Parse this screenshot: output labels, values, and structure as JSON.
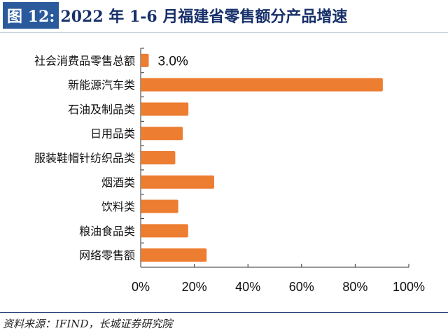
{
  "header": {
    "figure_label": "图 12:",
    "title": "2022 年 1-6 月福建省零售额分产品增速"
  },
  "source": "资料来源：IFIND，长城证券研究院",
  "colors": {
    "bar": "#ed7d31",
    "title_box": "#2a5a9c",
    "title_text": "#17306a"
  },
  "chart_data": {
    "type": "bar",
    "orientation": "horizontal",
    "title": "2022 年 1-6 月福建省零售额分产品增速",
    "categories": [
      "社会消费品零售总额",
      "新能源汽车类",
      "石油及制品类",
      "日用品类",
      "服装鞋帽针纺织品类",
      "烟酒类",
      "饮料类",
      "粮油食品类",
      "网络零售额"
    ],
    "values": [
      3.0,
      90.3,
      17.8,
      15.7,
      12.9,
      27.4,
      14.0,
      17.7,
      24.6
    ],
    "data_labels": [
      {
        "category": "社会消费品零售总额",
        "text": "3.0%"
      }
    ],
    "xlim": [
      0,
      100
    ],
    "xticks": [
      "0%",
      "20%",
      "40%",
      "60%",
      "80%",
      "100%"
    ],
    "xlabel": "",
    "ylabel": "",
    "grid": false,
    "legend": "none"
  }
}
